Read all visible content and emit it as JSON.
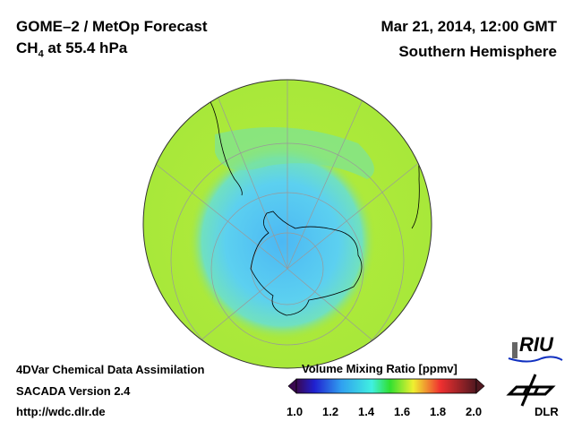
{
  "header": {
    "title": "GOME–2 / MetOp Forecast",
    "species": "CH",
    "species_sub": "4",
    "level": " at 55.4 hPa",
    "datetime": "Mar 21, 2014, 12:00 GMT",
    "region": "Southern Hemisphere"
  },
  "footer": {
    "line1": "4DVar Chemical Data Assimilation",
    "line2": "SACADA Version 2.4",
    "line3": "http://wdc.dlr.de"
  },
  "colorbar": {
    "title": "Volume Mixing Ratio [ppmv]",
    "ticks": [
      "1.0",
      "1.2",
      "1.4",
      "1.6",
      "1.8",
      "2.0"
    ],
    "range": [
      1.0,
      2.0
    ]
  },
  "logos": {
    "riu": "RIU",
    "dlr": "DLR"
  },
  "colors": {
    "ocean_high": "#b4ec3c",
    "low": "#5ac8f0"
  }
}
